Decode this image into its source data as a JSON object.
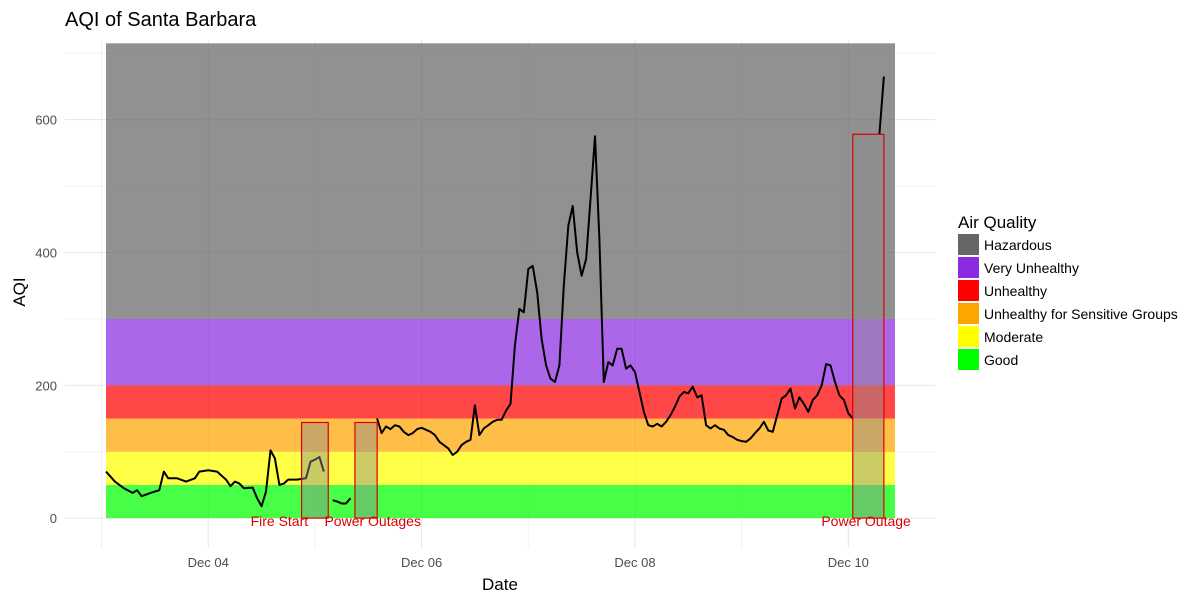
{
  "chart_data": {
    "type": "line",
    "title": "AQI of Santa Barbara",
    "xlabel": "Date",
    "ylabel": "AQI",
    "x_range": [
      "2019-12-03T01:00",
      "2019-12-10T10:30"
    ],
    "ylim": [
      -45,
      720
    ],
    "x_ticks": [
      {
        "date": "2019-12-04",
        "label": "Dec 04"
      },
      {
        "date": "2019-12-06",
        "label": "Dec 06"
      },
      {
        "date": "2019-12-08",
        "label": "Dec 08"
      },
      {
        "date": "2019-12-10",
        "label": "Dec 10"
      }
    ],
    "y_ticks": [
      0,
      200,
      400,
      600
    ],
    "grid": true,
    "legend": {
      "title": "Air Quality",
      "position": "right",
      "entries": [
        {
          "label": "Hazardous",
          "color": "#666666"
        },
        {
          "label": "Very Unhealthy",
          "color": "#8a2be2"
        },
        {
          "label": "Unhealthy",
          "color": "#ff0000"
        },
        {
          "label": "Unhealthy for Sensitive Groups",
          "color": "#ffa500"
        },
        {
          "label": "Moderate",
          "color": "#ffff00"
        },
        {
          "label": "Good",
          "color": "#00ff00"
        }
      ]
    },
    "bands": [
      {
        "label": "Good",
        "ymin": 0,
        "ymax": 50,
        "color": "#00ff00"
      },
      {
        "label": "Moderate",
        "ymin": 50,
        "ymax": 100,
        "color": "#ffff00"
      },
      {
        "label": "Unhealthy for Sensitive Groups",
        "ymin": 100,
        "ymax": 150,
        "color": "#ffa500"
      },
      {
        "label": "Unhealthy",
        "ymin": 150,
        "ymax": 200,
        "color": "#ff0000"
      },
      {
        "label": "Very Unhealthy",
        "ymin": 200,
        "ymax": 300,
        "color": "#8a2be2"
      },
      {
        "label": "Hazardous",
        "ymin": 300,
        "ymax": 715,
        "color": "#666666"
      }
    ],
    "band_x_range": [
      "2019-12-03T01:00",
      "2019-12-10T10:30"
    ],
    "highlight_color": "#dd0000",
    "highlights": [
      {
        "start": "2019-12-04T21:00",
        "end": "2019-12-05T03:00",
        "ymin": 0,
        "ymax": 144
      },
      {
        "start": "2019-12-05T09:00",
        "end": "2019-12-05T14:00",
        "ymin": 0,
        "ymax": 144
      },
      {
        "start": "2019-12-10T01:00",
        "end": "2019-12-10T08:00",
        "ymin": 0,
        "ymax": 578
      }
    ],
    "annotations": [
      {
        "text": "Fire Start",
        "x": "2019-12-04T16:00",
        "y": -12
      },
      {
        "text": "Power Outages",
        "x": "2019-12-05T13:00",
        "y": -12
      },
      {
        "text": "Power Outage",
        "x": "2019-12-10T04:00",
        "y": -12
      }
    ],
    "series": [
      {
        "color": "#000000",
        "segments": [
          [
            [
              "2019-12-03T01:00",
              70
            ],
            [
              "2019-12-03T03:00",
              55
            ],
            [
              "2019-12-03T05:00",
              45
            ],
            [
              "2019-12-03T07:00",
              38
            ],
            [
              "2019-12-03T08:00",
              42
            ],
            [
              "2019-12-03T09:00",
              33
            ],
            [
              "2019-12-03T11:00",
              38
            ],
            [
              "2019-12-03T13:00",
              42
            ],
            [
              "2019-12-03T14:00",
              70
            ],
            [
              "2019-12-03T15:00",
              60
            ],
            [
              "2019-12-03T17:00",
              60
            ],
            [
              "2019-12-03T19:00",
              55
            ],
            [
              "2019-12-03T21:00",
              60
            ],
            [
              "2019-12-03T22:00",
              70
            ],
            [
              "2019-12-04T00:00",
              72
            ],
            [
              "2019-12-04T02:00",
              70
            ],
            [
              "2019-12-04T04:00",
              58
            ],
            [
              "2019-12-04T05:00",
              48
            ],
            [
              "2019-12-04T06:00",
              55
            ],
            [
              "2019-12-04T07:00",
              52
            ],
            [
              "2019-12-04T08:00",
              45
            ],
            [
              "2019-12-04T10:00",
              46
            ],
            [
              "2019-12-04T11:00",
              30
            ],
            [
              "2019-12-04T12:00",
              18
            ],
            [
              "2019-12-04T13:00",
              40
            ],
            [
              "2019-12-04T14:00",
              102
            ],
            [
              "2019-12-04T15:00",
              90
            ],
            [
              "2019-12-04T16:00",
              50
            ],
            [
              "2019-12-04T17:00",
              52
            ],
            [
              "2019-12-04T18:00",
              58
            ],
            [
              "2019-12-04T20:00",
              58
            ],
            [
              "2019-12-04T22:00",
              60
            ],
            [
              "2019-12-04T23:00",
              85
            ],
            [
              "2019-12-05T00:00",
              88
            ],
            [
              "2019-12-05T01:00",
              92
            ],
            [
              "2019-12-05T02:00",
              70
            ]
          ],
          [
            [
              "2019-12-05T04:00",
              27
            ],
            [
              "2019-12-05T05:00",
              25
            ],
            [
              "2019-12-05T06:00",
              22
            ],
            [
              "2019-12-05T07:00",
              22
            ],
            [
              "2019-12-05T08:00",
              30
            ]
          ],
          [
            [
              "2019-12-05T14:00",
              150
            ],
            [
              "2019-12-05T15:00",
              128
            ],
            [
              "2019-12-05T16:00",
              138
            ],
            [
              "2019-12-05T17:00",
              134
            ],
            [
              "2019-12-05T18:00",
              140
            ],
            [
              "2019-12-05T19:00",
              138
            ],
            [
              "2019-12-05T20:00",
              130
            ],
            [
              "2019-12-05T21:00",
              125
            ],
            [
              "2019-12-05T22:00",
              128
            ],
            [
              "2019-12-05T23:00",
              134
            ],
            [
              "2019-12-06T00:00",
              136
            ],
            [
              "2019-12-06T02:00",
              130
            ],
            [
              "2019-12-06T03:00",
              125
            ],
            [
              "2019-12-06T04:00",
              115
            ],
            [
              "2019-12-06T05:00",
              110
            ],
            [
              "2019-12-06T06:00",
              105
            ],
            [
              "2019-12-06T07:00",
              95
            ],
            [
              "2019-12-06T08:00",
              100
            ],
            [
              "2019-12-06T09:00",
              110
            ],
            [
              "2019-12-06T10:00",
              115
            ],
            [
              "2019-12-06T11:00",
              118
            ],
            [
              "2019-12-06T12:00",
              170
            ],
            [
              "2019-12-06T13:00",
              125
            ],
            [
              "2019-12-06T14:00",
              135
            ],
            [
              "2019-12-06T15:00",
              140
            ],
            [
              "2019-12-06T16:00",
              145
            ],
            [
              "2019-12-06T17:00",
              148
            ],
            [
              "2019-12-06T18:00",
              148
            ],
            [
              "2019-12-06T19:00",
              162
            ],
            [
              "2019-12-06T20:00",
              172
            ],
            [
              "2019-12-06T21:00",
              260
            ],
            [
              "2019-12-06T22:00",
              315
            ],
            [
              "2019-12-06T23:00",
              310
            ],
            [
              "2019-12-07T00:00",
              375
            ],
            [
              "2019-12-07T01:00",
              380
            ],
            [
              "2019-12-07T02:00",
              340
            ],
            [
              "2019-12-07T03:00",
              270
            ],
            [
              "2019-12-07T04:00",
              230
            ],
            [
              "2019-12-07T05:00",
              210
            ],
            [
              "2019-12-07T06:00",
              205
            ],
            [
              "2019-12-07T07:00",
              230
            ],
            [
              "2019-12-07T08:00",
              350
            ],
            [
              "2019-12-07T09:00",
              440
            ],
            [
              "2019-12-07T10:00",
              470
            ],
            [
              "2019-12-07T11:00",
              400
            ],
            [
              "2019-12-07T12:00",
              365
            ],
            [
              "2019-12-07T13:00",
              390
            ],
            [
              "2019-12-07T14:00",
              480
            ],
            [
              "2019-12-07T15:00",
              575
            ],
            [
              "2019-12-07T16:00",
              420
            ],
            [
              "2019-12-07T17:00",
              205
            ],
            [
              "2019-12-07T18:00",
              235
            ],
            [
              "2019-12-07T19:00",
              230
            ],
            [
              "2019-12-07T20:00",
              255
            ],
            [
              "2019-12-07T21:00",
              255
            ],
            [
              "2019-12-07T22:00",
              225
            ],
            [
              "2019-12-07T23:00",
              230
            ],
            [
              "2019-12-08T00:00",
              220
            ],
            [
              "2019-12-08T01:00",
              190
            ],
            [
              "2019-12-08T02:00",
              160
            ],
            [
              "2019-12-08T03:00",
              140
            ],
            [
              "2019-12-08T04:00",
              138
            ],
            [
              "2019-12-08T05:00",
              142
            ],
            [
              "2019-12-08T06:00",
              138
            ],
            [
              "2019-12-08T07:00",
              145
            ],
            [
              "2019-12-08T08:00",
              155
            ],
            [
              "2019-12-08T09:00",
              168
            ],
            [
              "2019-12-08T10:00",
              183
            ],
            [
              "2019-12-08T11:00",
              190
            ],
            [
              "2019-12-08T12:00",
              188
            ],
            [
              "2019-12-08T13:00",
              198
            ],
            [
              "2019-12-08T14:00",
              182
            ],
            [
              "2019-12-08T15:00",
              185
            ],
            [
              "2019-12-08T16:00",
              140
            ],
            [
              "2019-12-08T17:00",
              135
            ],
            [
              "2019-12-08T18:00",
              140
            ],
            [
              "2019-12-08T19:00",
              135
            ],
            [
              "2019-12-08T20:00",
              133
            ],
            [
              "2019-12-08T21:00",
              125
            ],
            [
              "2019-12-08T22:00",
              122
            ],
            [
              "2019-12-08T23:00",
              118
            ],
            [
              "2019-12-09T00:00",
              116
            ],
            [
              "2019-12-09T01:00",
              115
            ],
            [
              "2019-12-09T02:00",
              120
            ],
            [
              "2019-12-09T03:00",
              128
            ],
            [
              "2019-12-09T04:00",
              135
            ],
            [
              "2019-12-09T05:00",
              145
            ],
            [
              "2019-12-09T06:00",
              132
            ],
            [
              "2019-12-09T07:00",
              130
            ],
            [
              "2019-12-09T08:00",
              155
            ],
            [
              "2019-12-09T09:00",
              180
            ],
            [
              "2019-12-09T10:00",
              185
            ],
            [
              "2019-12-09T11:00",
              195
            ],
            [
              "2019-12-09T12:00",
              165
            ],
            [
              "2019-12-09T13:00",
              182
            ],
            [
              "2019-12-09T14:00",
              172
            ],
            [
              "2019-12-09T15:00",
              160
            ],
            [
              "2019-12-09T16:00",
              178
            ],
            [
              "2019-12-09T17:00",
              185
            ],
            [
              "2019-12-09T18:00",
              200
            ],
            [
              "2019-12-09T19:00",
              232
            ],
            [
              "2019-12-09T20:00",
              230
            ],
            [
              "2019-12-09T21:00",
              205
            ],
            [
              "2019-12-09T22:00",
              185
            ],
            [
              "2019-12-09T23:00",
              178
            ],
            [
              "2019-12-10T00:00",
              158
            ],
            [
              "2019-12-10T01:00",
              150
            ]
          ],
          [
            [
              "2019-12-10T07:00",
              578
            ],
            [
              "2019-12-10T08:00",
              665
            ]
          ]
        ]
      }
    ]
  }
}
